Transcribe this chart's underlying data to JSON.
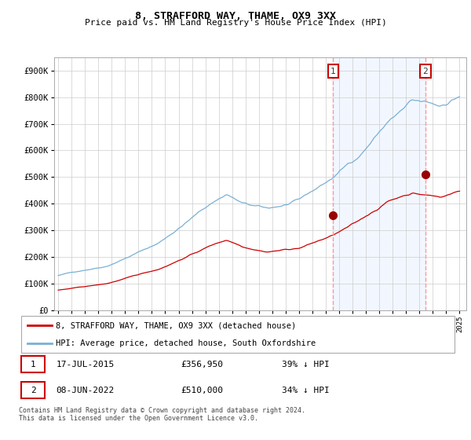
{
  "title": "8, STRAFFORD WAY, THAME, OX9 3XX",
  "subtitle": "Price paid vs. HM Land Registry's House Price Index (HPI)",
  "background_color": "#ffffff",
  "plot_bg_color": "#ffffff",
  "grid_color": "#cccccc",
  "hpi_color": "#7ab0d4",
  "hpi_fill_color": "#ddeeff",
  "price_color": "#cc0000",
  "dashed_line_color": "#ff9999",
  "ylim": [
    0,
    950000
  ],
  "xlim_min": 1994.7,
  "xlim_max": 2025.5,
  "yticks": [
    0,
    100000,
    200000,
    300000,
    400000,
    500000,
    600000,
    700000,
    800000,
    900000
  ],
  "ytick_labels": [
    "£0",
    "£100K",
    "£200K",
    "£300K",
    "£400K",
    "£500K",
    "£600K",
    "£700K",
    "£800K",
    "£900K"
  ],
  "sale1_year": 2015.54,
  "sale1_price": 356950,
  "sale2_year": 2022.44,
  "sale2_price": 510000,
  "legend_line1": "8, STRAFFORD WAY, THAME, OX9 3XX (detached house)",
  "legend_line2": "HPI: Average price, detached house, South Oxfordshire",
  "note1_label": "1",
  "note1_date": "17-JUL-2015",
  "note1_price": "£356,950",
  "note1_pct": "39% ↓ HPI",
  "note2_label": "2",
  "note2_date": "08-JUN-2022",
  "note2_price": "£510,000",
  "note2_pct": "34% ↓ HPI",
  "footer": "Contains HM Land Registry data © Crown copyright and database right 2024.\nThis data is licensed under the Open Government Licence v3.0."
}
